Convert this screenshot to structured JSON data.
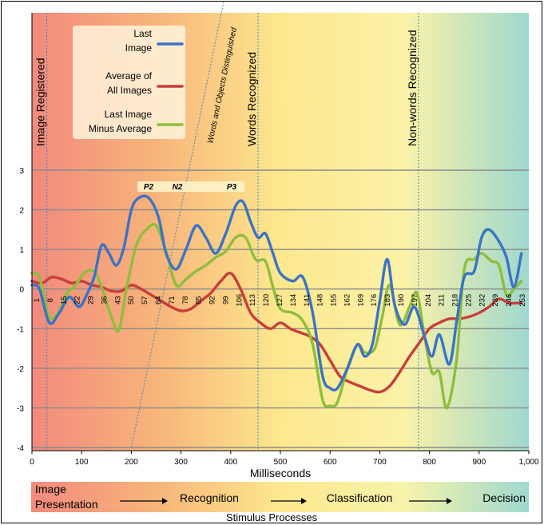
{
  "chart_data": {
    "type": "line",
    "xlabel": "Milliseconds",
    "xlim": [
      0,
      1000
    ],
    "ylim": [
      -4,
      3
    ],
    "x_ticks": [
      "0",
      "100",
      "200",
      "300",
      "400",
      "500",
      "600",
      "700",
      "800",
      "900",
      "1,000"
    ],
    "y_ticks": [
      "-4",
      "-3",
      "-2",
      "-1",
      "0",
      "1",
      "2",
      "3"
    ],
    "sample_labels": [
      "1",
      "8",
      "15",
      "22",
      "29",
      "36",
      "43",
      "50",
      "57",
      "64",
      "71",
      "78",
      "85",
      "92",
      "99",
      "106",
      "113",
      "120",
      "127",
      "134",
      "141",
      "148",
      "155",
      "162",
      "169",
      "176",
      "183",
      "190",
      "197",
      "204",
      "211",
      "218",
      "225",
      "232",
      "239",
      "246",
      "253"
    ],
    "grid": true,
    "legend_position": "top-left",
    "series": [
      {
        "name": "Last Image",
        "color": "#3b73c4",
        "x": [
          0,
          15,
          35,
          55,
          75,
          95,
          110,
          125,
          140,
          155,
          170,
          185,
          200,
          215,
          235,
          255,
          270,
          290,
          310,
          330,
          350,
          370,
          390,
          410,
          425,
          440,
          455,
          470,
          485,
          500,
          525,
          545,
          565,
          585,
          600,
          615,
          635,
          655,
          670,
          685,
          700,
          715,
          730,
          750,
          770,
          790,
          805,
          820,
          840,
          855,
          870,
          890,
          905,
          920,
          940,
          955,
          970,
          985
        ],
        "y": [
          0.1,
          0,
          -0.85,
          -0.6,
          -0.2,
          -0.45,
          -0.15,
          0.3,
          1.1,
          0.9,
          0.6,
          1.05,
          2.0,
          2.3,
          2.3,
          1.8,
          0.9,
          0.5,
          1.0,
          1.6,
          1.3,
          0.9,
          1.4,
          2.1,
          2.2,
          1.7,
          1.3,
          1.4,
          0.9,
          0.4,
          0.2,
          0.3,
          -0.6,
          -2.2,
          -2.5,
          -2.5,
          -2.0,
          -1.4,
          -1.7,
          -1.4,
          -0.3,
          0.75,
          -0.4,
          -0.9,
          -0.45,
          -1.2,
          -1.7,
          -1.15,
          -1.9,
          -0.8,
          0.3,
          0.45,
          1.3,
          1.5,
          1.2,
          0.8,
          0.05,
          0.9
        ]
      },
      {
        "name": "Average of All Images",
        "color": "#c83e3a",
        "x": [
          0,
          20,
          40,
          60,
          80,
          100,
          120,
          140,
          160,
          180,
          200,
          220,
          240,
          260,
          280,
          300,
          320,
          340,
          360,
          380,
          400,
          420,
          440,
          460,
          480,
          500,
          520,
          540,
          560,
          580,
          600,
          620,
          640,
          660,
          680,
          700,
          720,
          740,
          760,
          780,
          800,
          820,
          840,
          860,
          880,
          900,
          920,
          940,
          960,
          985
        ],
        "y": [
          0.2,
          0.15,
          0.3,
          0.25,
          0.15,
          0.2,
          0.1,
          0.05,
          -0.05,
          -0.05,
          0.1,
          0.0,
          -0.15,
          -0.3,
          -0.45,
          -0.55,
          -0.5,
          -0.3,
          -0.1,
          0.2,
          0.4,
          0.0,
          -0.6,
          -0.85,
          -1.0,
          -0.85,
          -1.0,
          -1.1,
          -1.2,
          -1.4,
          -1.8,
          -2.2,
          -2.35,
          -2.45,
          -2.55,
          -2.6,
          -2.45,
          -2.1,
          -1.7,
          -1.35,
          -1.0,
          -0.85,
          -0.75,
          -0.75,
          -0.7,
          -0.6,
          -0.45,
          -0.25,
          -0.35,
          -0.35
        ]
      },
      {
        "name": "Last Image Minus Average",
        "color": "#8fbd3c",
        "x": [
          0,
          15,
          35,
          55,
          70,
          85,
          105,
          125,
          140,
          160,
          175,
          190,
          210,
          230,
          250,
          270,
          290,
          310,
          330,
          350,
          370,
          390,
          410,
          430,
          450,
          470,
          485,
          500,
          525,
          545,
          565,
          585,
          600,
          615,
          635,
          655,
          670,
          690,
          705,
          720,
          740,
          760,
          775,
          790,
          805,
          820,
          835,
          855,
          870,
          890,
          905,
          925,
          940,
          955,
          970,
          985
        ],
        "y": [
          0.4,
          0.3,
          -0.7,
          -0.55,
          -0.1,
          0.05,
          0.4,
          0.45,
          0.05,
          -0.7,
          -1.05,
          0.0,
          1.1,
          1.5,
          1.6,
          0.95,
          0.1,
          0.25,
          0.45,
          0.6,
          0.8,
          0.95,
          1.3,
          1.3,
          0.75,
          0.7,
          0.05,
          -0.5,
          -0.6,
          -0.8,
          -1.4,
          -2.8,
          -2.95,
          -2.85,
          -2.0,
          -1.4,
          -1.6,
          -1.5,
          -0.7,
          0.1,
          -0.9,
          -0.45,
          -0.1,
          -1.2,
          -2.1,
          -2.1,
          -3.0,
          -1.75,
          0.5,
          0.75,
          0.9,
          0.7,
          0.6,
          -0.15,
          0.0,
          0.2
        ]
      }
    ],
    "legend": [
      {
        "label_lines": [
          "Last",
          "Image"
        ],
        "color": "#3b73c4"
      },
      {
        "label_lines": [
          "Average of",
          "All Images"
        ],
        "color": "#c83e3a"
      },
      {
        "label_lines": [
          "Last Image",
          "Minus Average"
        ],
        "color": "#8fbd3c"
      }
    ],
    "events": [
      {
        "label": "Image Registered",
        "x": 30
      },
      {
        "label": "Words Recognized",
        "x": 455
      },
      {
        "label": "Non-words Recognized",
        "x": 778
      }
    ],
    "diagonal_annotation": {
      "label": "Words and Objects Distinguished",
      "from": [
        200,
        -4
      ],
      "to": [
        390,
        7.5
      ]
    },
    "peaks": [
      "P2",
      "N2",
      "P3"
    ],
    "bottom_band": {
      "colors": [
        "#f28a7e",
        "#f7b47a",
        "#fde88e",
        "#f6f4ab",
        "#9fd8cf"
      ],
      "stages": [
        "Image\nPresentation",
        "Recognition",
        "Classification",
        "Decision"
      ],
      "caption": "Stimulus Processes"
    },
    "background_colors": [
      "#f28a7e",
      "#f7b47a",
      "#fde88e",
      "#fbf2a8",
      "#9fd8cf"
    ]
  }
}
